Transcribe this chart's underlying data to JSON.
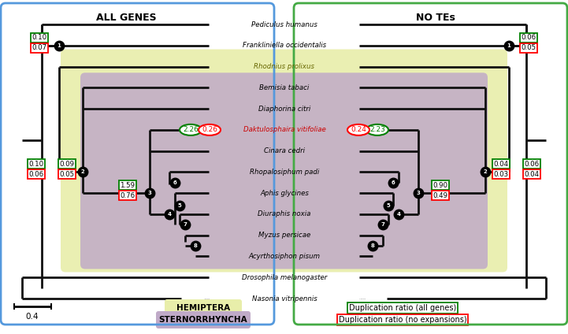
{
  "title_left": "ALL GENES",
  "title_right": "NO TEs",
  "species": [
    "Pediculus humanus",
    "Frankliniella occidentalis",
    "Rhodnius prolixus",
    "Bemisia tabaci",
    "Diaphorina citri",
    "Daktulosphaira vitifoliae",
    "Cinara cedri",
    "Rhopalosiphum padi",
    "Aphis glycines",
    "Diuraphis noxia",
    "Myzus persicae",
    "Acyrthosiphon pisum",
    "Drosophila melanogaster",
    "Nasonia vitripennis"
  ],
  "species_colors": [
    "black",
    "black",
    "#666600",
    "black",
    "black",
    "#cc0000",
    "black",
    "black",
    "black",
    "black",
    "black",
    "black",
    "black",
    "black"
  ],
  "bg_hemiptera_color": "#e8eeaa",
  "bg_sternorrhyncha_color": "#c0aac8",
  "border_left_color": "#5599dd",
  "border_right_color": "#44aa44",
  "left_boxes": {
    "n1_green": "0.10",
    "n1_red": "0.07",
    "n2a_green": "0.10",
    "n2a_red": "0.06",
    "n2b_green": "0.09",
    "n2b_red": "0.05",
    "n3_green": "1.59",
    "n3_red": "0.76",
    "dak_green": "2.26",
    "dak_red": "0.26"
  },
  "right_boxes": {
    "n1_green": "0.06",
    "n1_red": "0.05",
    "n2a_green": "0.06",
    "n2a_red": "0.04",
    "n2b_green": "0.04",
    "n2b_red": "0.03",
    "n3_green": "0.90",
    "n3_red": "0.49",
    "dak_green": "2.23",
    "dak_red": "0.24"
  },
  "scale_label": "0.4",
  "legend_hemiptera": "HEMIPTERA",
  "legend_sternorrhyncha": "STERNORRHYNCHA",
  "legend_green": "Duplication ratio (all genes)",
  "legend_red": "Duplication ratio (no expansions)"
}
